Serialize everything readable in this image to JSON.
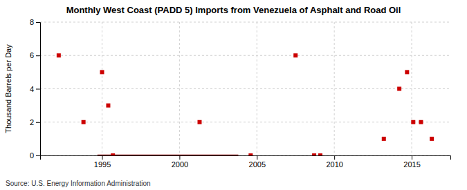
{
  "chart_data": {
    "type": "scatter",
    "title": "Monthly West Coast (PADD 5) Imports from Venezuela of Asphalt and Road Oil",
    "ylabel": "Thousand Barrels per Day",
    "annotations": [
      "Source: U.S. Energy Information Administration"
    ],
    "xlim": [
      1991.0,
      2017.5
    ],
    "ylim": [
      0,
      8
    ],
    "xticks": [
      1995,
      2000,
      2005,
      2010,
      2015
    ],
    "yticks": [
      0,
      2,
      4,
      6,
      8
    ],
    "grid": true,
    "series": [
      {
        "type": "line",
        "color": "#8b0000",
        "x": [
          1994.7,
          2003.8
        ],
        "values": [
          0,
          0
        ]
      },
      {
        "type": "scatter",
        "marker": "square",
        "color": "#cc0000",
        "x": [
          1992.2,
          1993.8,
          1995.0,
          1995.4,
          1995.7,
          2001.3,
          2004.6,
          2007.5,
          2008.7,
          2009.1,
          2013.2,
          2014.2,
          2014.7,
          2015.1,
          2015.6,
          2016.3
        ],
        "values": [
          6,
          2,
          5,
          3,
          0,
          2,
          0,
          6,
          0,
          0,
          1,
          4,
          5,
          2,
          2,
          1
        ]
      }
    ]
  }
}
